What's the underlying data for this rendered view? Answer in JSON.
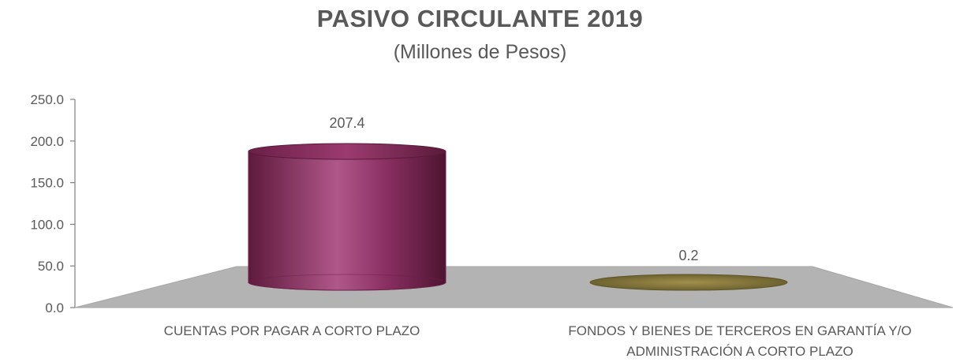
{
  "chart_data": {
    "type": "bar",
    "title": "PASIVO CIRCULANTE 2019",
    "subtitle": "(Millones de Pesos)",
    "categories": [
      "CUENTAS POR PAGAR A CORTO PLAZO",
      "FONDOS Y BIENES DE TERCEROS EN GARANTÍA Y/O ADMINISTRACIÓN A CORTO PLAZO"
    ],
    "category_lines": [
      [
        "CUENTAS POR PAGAR A CORTO PLAZO"
      ],
      [
        "FONDOS Y BIENES DE TERCEROS EN GARANTÍA Y/O",
        "ADMINISTRACIÓN A CORTO PLAZO"
      ]
    ],
    "values": [
      207.4,
      0.2
    ],
    "data_labels": [
      "207.4",
      "0.2"
    ],
    "bar_colors": [
      "#8a2a5c",
      "#8a7a3c"
    ],
    "ylim": [
      0,
      250
    ],
    "yticks": [
      "0.0",
      "50.0",
      "100.0",
      "150.0",
      "200.0",
      "250.0"
    ],
    "shape": "cylinder",
    "grid": false,
    "legend": "none"
  }
}
